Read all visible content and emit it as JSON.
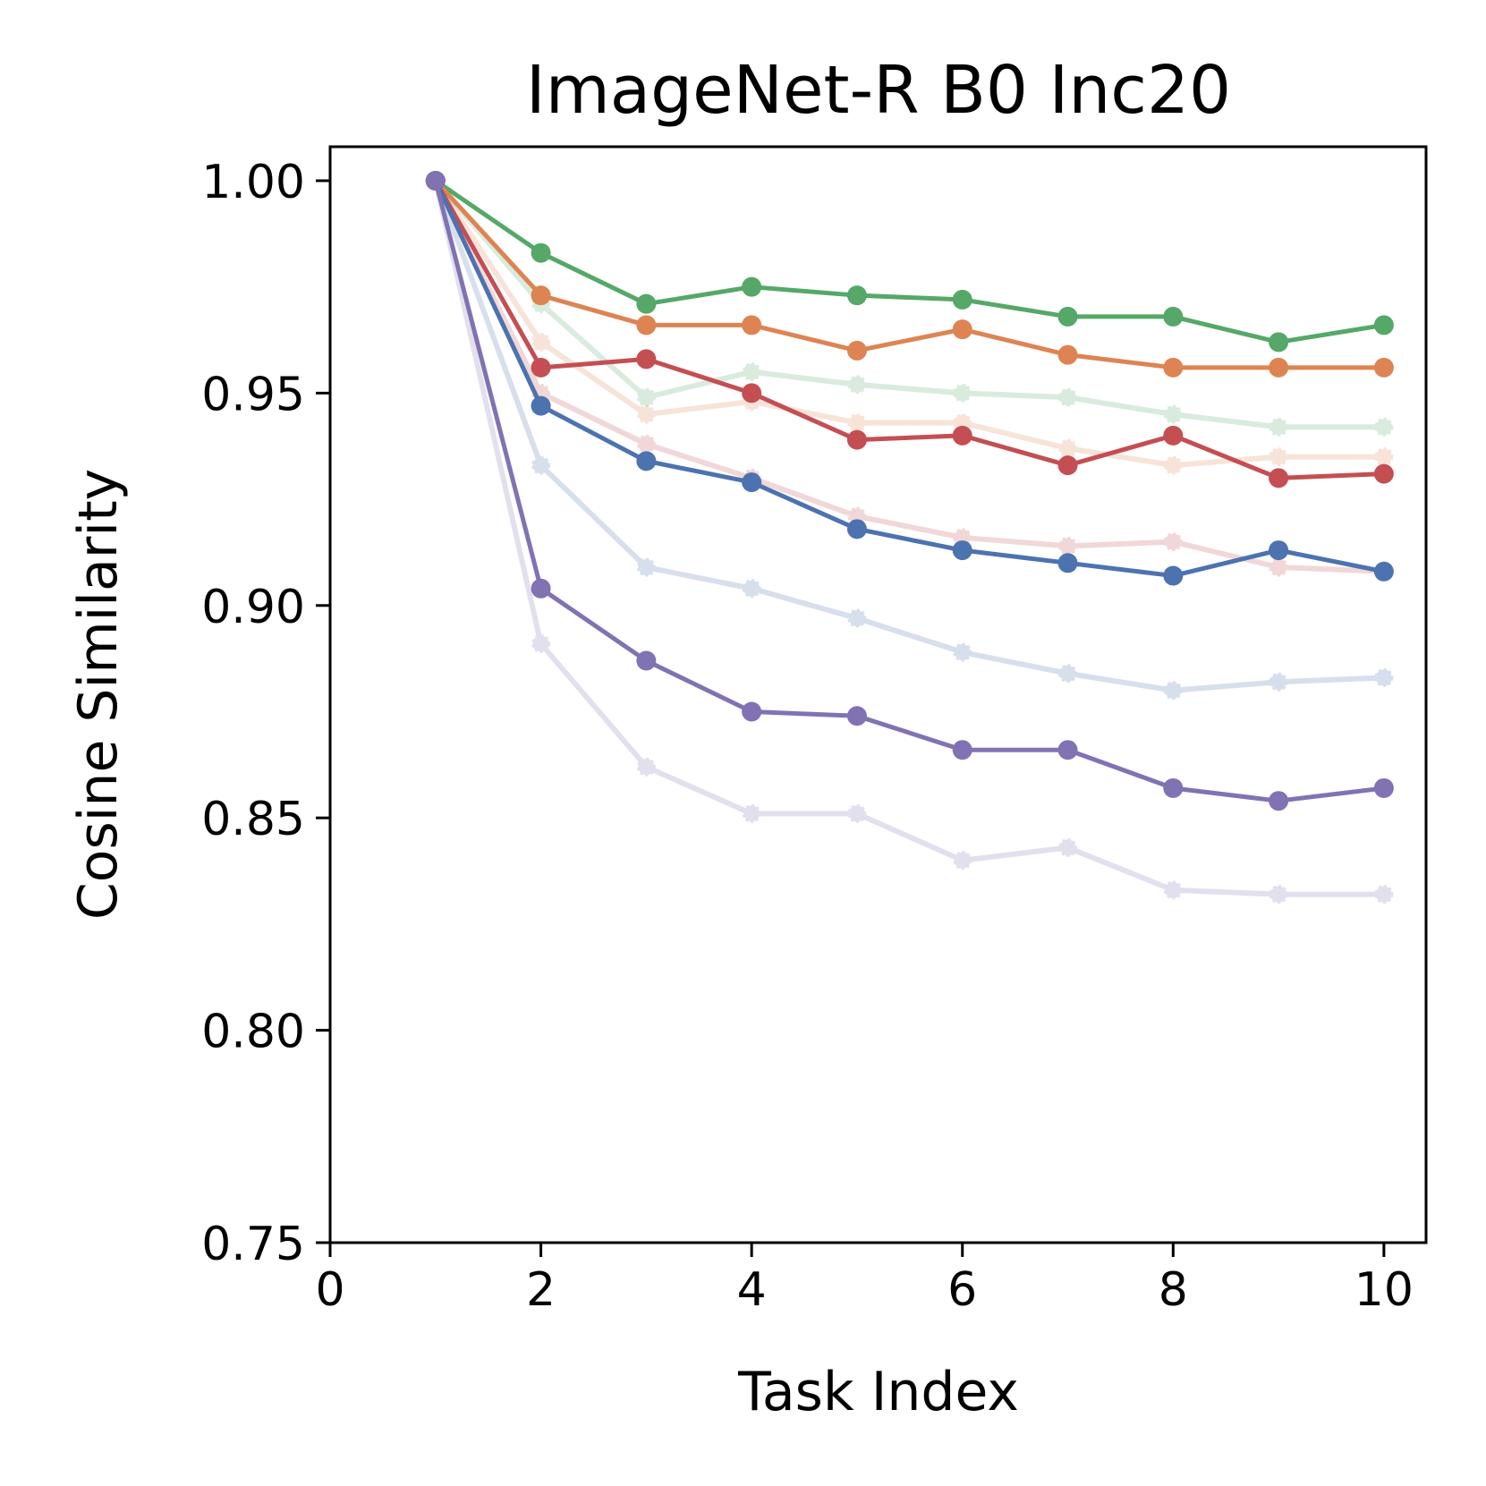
{
  "chart_data": {
    "type": "line",
    "title": "ImageNet-R B0 Inc20",
    "xlabel": "Task Index",
    "ylabel": "Cosine Similarity",
    "xlim": [
      0,
      10.4
    ],
    "ylim": [
      0.75,
      1.008
    ],
    "xticks": [
      0,
      2,
      4,
      6,
      8,
      10
    ],
    "xtick_labels": [
      "0",
      "2",
      "4",
      "6",
      "8",
      "10"
    ],
    "yticks": [
      0.75,
      0.8,
      0.85,
      0.9,
      0.95,
      1.0
    ],
    "ytick_labels": [
      "0.75",
      "0.80",
      "0.85",
      "0.90",
      "0.95",
      "1.00"
    ],
    "x": [
      1,
      2,
      3,
      4,
      5,
      6,
      7,
      8,
      9,
      10
    ],
    "series": [
      {
        "name": "green-faded",
        "color": "#55a868",
        "faded": true,
        "values": [
          1.0,
          0.971,
          0.949,
          0.955,
          0.952,
          0.95,
          0.949,
          0.945,
          0.942,
          0.942
        ]
      },
      {
        "name": "orange-faded",
        "color": "#dd8452",
        "faded": true,
        "values": [
          1.0,
          0.962,
          0.945,
          0.948,
          0.943,
          0.943,
          0.937,
          0.933,
          0.935,
          0.935
        ]
      },
      {
        "name": "red-faded",
        "color": "#c44e52",
        "faded": true,
        "values": [
          1.0,
          0.95,
          0.938,
          0.93,
          0.921,
          0.916,
          0.914,
          0.915,
          0.909,
          0.908
        ]
      },
      {
        "name": "blue-faded",
        "color": "#4c72b0",
        "faded": true,
        "values": [
          1.0,
          0.933,
          0.909,
          0.904,
          0.897,
          0.889,
          0.884,
          0.88,
          0.882,
          0.883
        ]
      },
      {
        "name": "purple-faded",
        "color": "#8172b3",
        "faded": true,
        "values": [
          1.0,
          0.891,
          0.862,
          0.851,
          0.851,
          0.84,
          0.843,
          0.833,
          0.832,
          0.832
        ]
      },
      {
        "name": "green",
        "color": "#55a868",
        "faded": false,
        "values": [
          1.0,
          0.983,
          0.971,
          0.975,
          0.973,
          0.972,
          0.968,
          0.968,
          0.962,
          0.966
        ]
      },
      {
        "name": "orange",
        "color": "#dd8452",
        "faded": false,
        "values": [
          1.0,
          0.973,
          0.966,
          0.966,
          0.96,
          0.965,
          0.959,
          0.956,
          0.956,
          0.956
        ]
      },
      {
        "name": "red",
        "color": "#c44e52",
        "faded": false,
        "values": [
          1.0,
          0.956,
          0.958,
          0.95,
          0.939,
          0.94,
          0.933,
          0.94,
          0.93,
          0.931
        ]
      },
      {
        "name": "blue",
        "color": "#4c72b0",
        "faded": false,
        "values": [
          1.0,
          0.947,
          0.934,
          0.929,
          0.918,
          0.913,
          0.91,
          0.907,
          0.913,
          0.908
        ]
      },
      {
        "name": "purple",
        "color": "#8172b3",
        "faded": false,
        "values": [
          1.0,
          0.904,
          0.887,
          0.875,
          0.874,
          0.866,
          0.866,
          0.857,
          0.854,
          0.857
        ]
      }
    ]
  }
}
